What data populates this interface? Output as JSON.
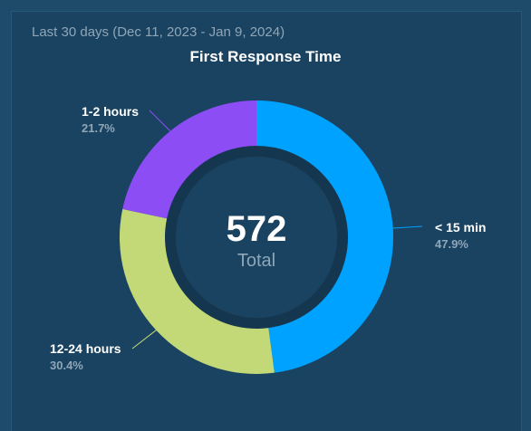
{
  "header": {
    "subtitle": "Last 30 days (Dec 11, 2023 - Jan 9, 2024)"
  },
  "chart_data": {
    "type": "pie",
    "title": "First Response Time",
    "center": {
      "value": "572",
      "label": "Total"
    },
    "total": 572,
    "slices": [
      {
        "label": "< 15 min",
        "percent_label": "47.9%",
        "value": 47.9,
        "color": "#00a2ff"
      },
      {
        "label": "12-24 hours",
        "percent_label": "30.4%",
        "value": 30.4,
        "color": "#c3d977"
      },
      {
        "label": "1-2 hours",
        "percent_label": "21.7%",
        "value": 21.7,
        "color": "#8c4df5"
      }
    ]
  }
}
